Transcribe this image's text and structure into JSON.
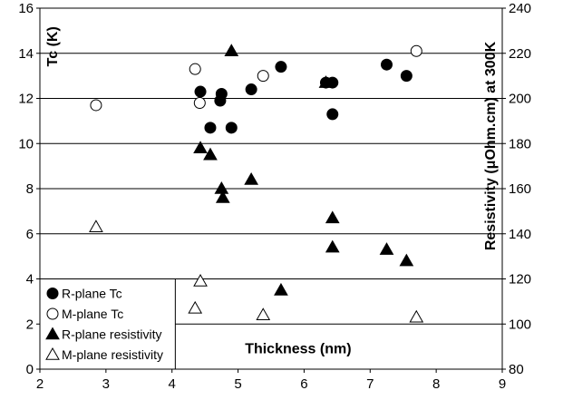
{
  "chart_data": {
    "type": "scatter",
    "xlabel": "Thickness (nm)",
    "ylabel": "Tc (K)",
    "y2label": "Resistivity (μOhm.cm) at 300K",
    "xlim": [
      2,
      9
    ],
    "ylim": [
      0,
      16
    ],
    "y2lim": [
      80,
      240
    ],
    "xticks": [
      "2",
      "3",
      "4",
      "5",
      "6",
      "7",
      "8",
      "9"
    ],
    "yticks": [
      "0",
      "2",
      "4",
      "6",
      "8",
      "10",
      "12",
      "14",
      "16"
    ],
    "y2ticks": [
      "80",
      "100",
      "120",
      "140",
      "160",
      "180",
      "200",
      "220",
      "240"
    ],
    "grid": "horizontal",
    "legend_position": "bottom-left",
    "series": [
      {
        "name": "R-plane Tc",
        "marker": "circle-filled",
        "axis": "left",
        "points": [
          [
            4.43,
            12.3
          ],
          [
            4.73,
            11.9
          ],
          [
            4.75,
            12.2
          ],
          [
            4.58,
            10.7
          ],
          [
            4.9,
            10.7
          ],
          [
            5.2,
            12.4
          ],
          [
            5.65,
            13.4
          ],
          [
            6.33,
            12.7
          ],
          [
            6.43,
            12.7
          ],
          [
            6.43,
            11.3
          ],
          [
            7.25,
            13.5
          ],
          [
            7.55,
            13.0
          ]
        ]
      },
      {
        "name": "M-plane Tc",
        "marker": "circle-open",
        "axis": "left",
        "points": [
          [
            2.85,
            11.7
          ],
          [
            4.35,
            13.3
          ],
          [
            4.42,
            11.8
          ],
          [
            5.38,
            13.0
          ],
          [
            7.7,
            14.1
          ]
        ]
      },
      {
        "name": "R-plane resistivity",
        "marker": "triangle-filled",
        "axis": "right",
        "points": [
          [
            4.9,
            221
          ],
          [
            4.43,
            178
          ],
          [
            4.58,
            175
          ],
          [
            4.75,
            160
          ],
          [
            4.77,
            156
          ],
          [
            5.2,
            164
          ],
          [
            6.33,
            207
          ],
          [
            6.43,
            147
          ],
          [
            6.43,
            134
          ],
          [
            7.25,
            133
          ],
          [
            7.55,
            128
          ],
          [
            5.65,
            115
          ]
        ]
      },
      {
        "name": "M-plane resistivity",
        "marker": "triangle-open",
        "axis": "right",
        "points": [
          [
            2.85,
            143
          ],
          [
            4.43,
            119
          ],
          [
            4.35,
            107
          ],
          [
            5.38,
            104
          ],
          [
            7.7,
            103
          ]
        ]
      }
    ]
  }
}
